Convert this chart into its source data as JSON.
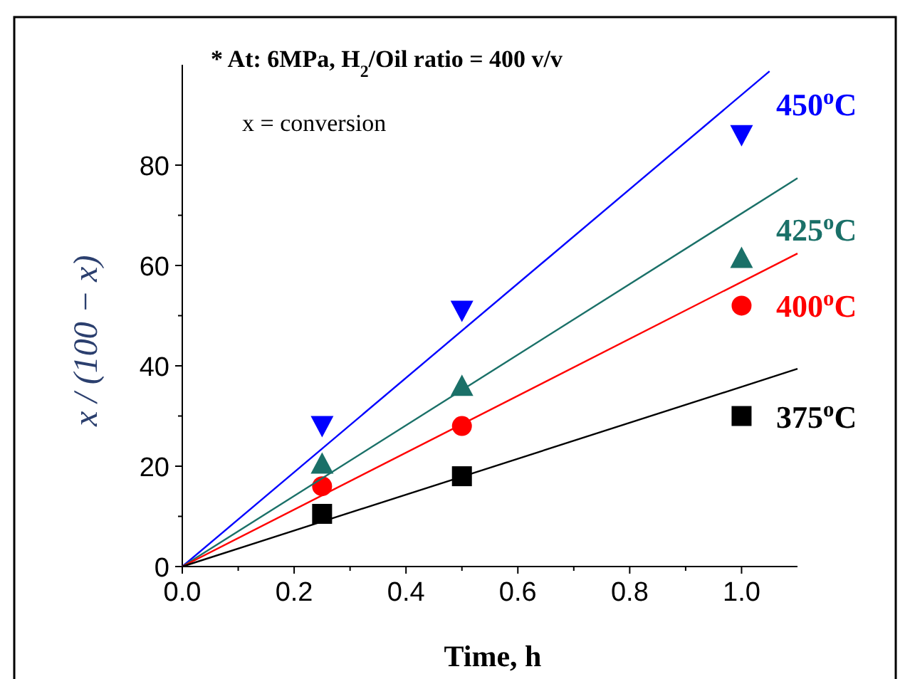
{
  "chart_data": {
    "type": "scatter",
    "xlabel": "Time, h",
    "ylabel": "x / (100 − x)",
    "annotations": [
      "* At: 6MPa, H$_{2}$/Oil ratio = 400 v/v",
      "x = conversion"
    ],
    "xlim": [
      0,
      1.1
    ],
    "ylim": [
      0,
      100
    ],
    "xticks": [
      {
        "value": 0,
        "label": "0.0"
      },
      {
        "value": 0.1,
        "label": null
      },
      {
        "value": 0.2,
        "label": "0.2"
      },
      {
        "value": 0.3,
        "label": null
      },
      {
        "value": 0.4,
        "label": "0.4"
      },
      {
        "value": 0.5,
        "label": null
      },
      {
        "value": 0.6,
        "label": "0.6"
      },
      {
        "value": 0.7,
        "label": null
      },
      {
        "value": 0.8,
        "label": "0.8"
      },
      {
        "value": 0.9,
        "label": null
      },
      {
        "value": 1,
        "label": "1.0"
      }
    ],
    "yticks": [
      0,
      {
        "value": 10,
        "label": null
      },
      20,
      {
        "value": 30,
        "label": null
      },
      40,
      {
        "value": 50,
        "label": null
      },
      60,
      {
        "value": 70,
        "label": null
      },
      80
    ],
    "grid": false,
    "series": [
      {
        "name": "450$^{o}$C",
        "marker": "triangle-down",
        "color": "#0000ff",
        "x": [
          0.25,
          0.5,
          1.0
        ],
        "values": [
          28,
          51,
          86
        ]
      },
      {
        "name": "425$^{o}$C",
        "marker": "triangle",
        "color": "#1a7068",
        "x": [
          0.25,
          0.5,
          1.0
        ],
        "values": [
          20.5,
          36,
          61.5
        ]
      },
      {
        "name": "400$^{o}$C",
        "marker": "circle",
        "color": "#ff0000",
        "x": [
          0.25,
          0.5,
          1.0
        ],
        "values": [
          16,
          28,
          52
        ]
      },
      {
        "name": "375$^{o}$C",
        "marker": "square",
        "color": "#000000",
        "x": [
          0.25,
          0.5,
          1.0
        ],
        "values": [
          10.5,
          18,
          30
        ]
      },
      {
        "type": "line",
        "line_style": "solid",
        "color": "#0000ff",
        "x": [
          0,
          1.05
        ],
        "values": [
          0,
          98.7
        ]
      },
      {
        "type": "line",
        "line_style": "solid",
        "color": "#1a7068",
        "x": [
          0,
          1.1
        ],
        "values": [
          0,
          77.4
        ]
      },
      {
        "type": "line",
        "line_style": "solid",
        "color": "#ff0000",
        "x": [
          0,
          1.1
        ],
        "values": [
          0,
          62.4
        ]
      },
      {
        "type": "line",
        "line_style": "solid",
        "color": "#000000",
        "x": [
          0,
          1.1
        ],
        "values": [
          0,
          39.4
        ]
      }
    ]
  }
}
